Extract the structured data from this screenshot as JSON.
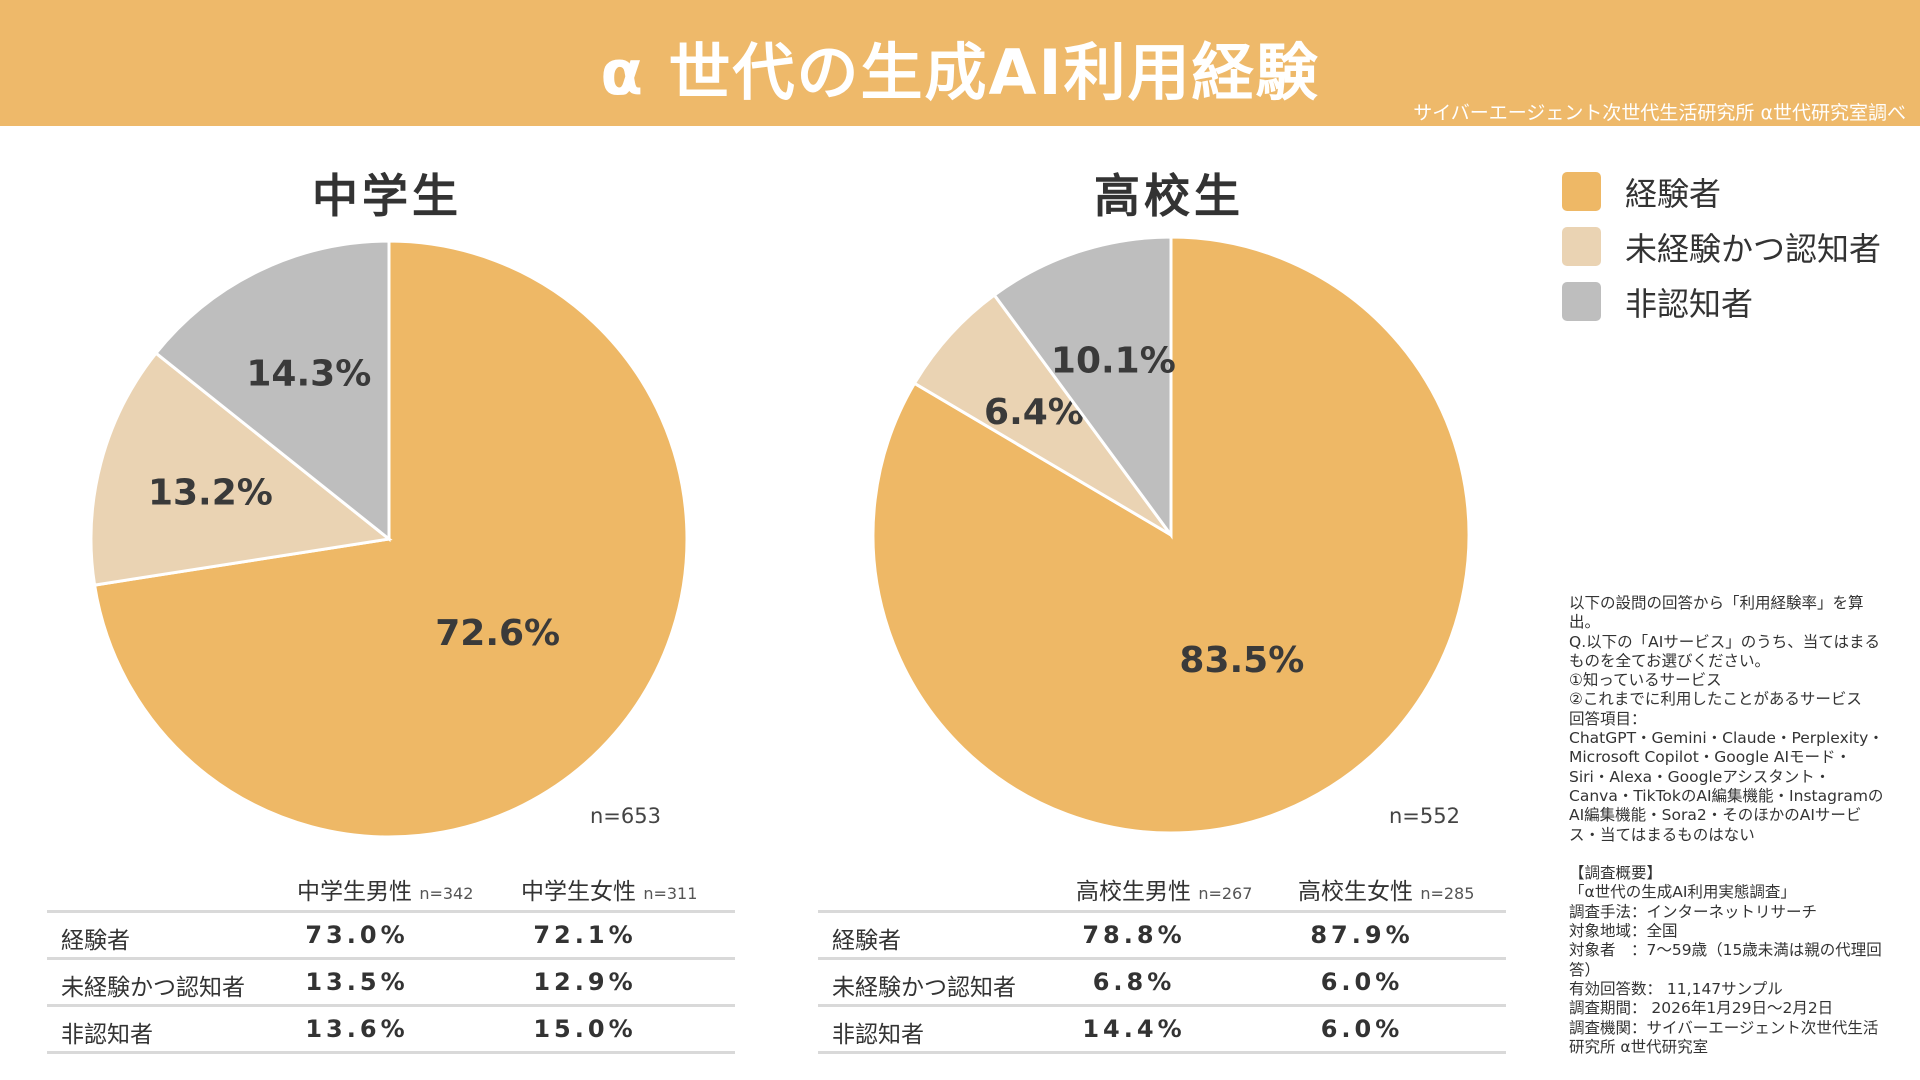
{
  "header": {
    "title": "α 世代の生成AI利用経験",
    "credit": "サイバーエージェント次世代生活研究所 α世代研究室調べ"
  },
  "colors": {
    "header": "#EEB96A",
    "experienced": "#EEB866",
    "aware": "#EAD3B3",
    "unaware": "#BEBEBE"
  },
  "legend": [
    "経験者",
    "未経験かつ認知者",
    "非認知者"
  ],
  "chart_data": [
    {
      "type": "pie",
      "title": "中学生",
      "n": "n=653",
      "labels": [
        "経験者",
        "未経験かつ認知者",
        "非認知者"
      ],
      "values": [
        72.6,
        13.2,
        14.3
      ],
      "value_labels": [
        "72.6%",
        "13.2%",
        "14.3%"
      ],
      "start": "top",
      "direction": "clockwise"
    },
    {
      "type": "pie",
      "title": "高校生",
      "n": "n=552",
      "labels": [
        "経験者",
        "未経験かつ認知者",
        "非認知者"
      ],
      "values": [
        83.5,
        6.4,
        10.1
      ],
      "value_labels": [
        "83.5%",
        "6.4%",
        "10.1%"
      ],
      "start": "top",
      "direction": "clockwise"
    }
  ],
  "tables": [
    {
      "columns": [
        {
          "label": "中学生男性",
          "n": "n=342"
        },
        {
          "label": "中学生女性",
          "n": "n=311"
        }
      ],
      "rows": [
        {
          "label": "経験者",
          "values": [
            "73.0%",
            "72.1%"
          ]
        },
        {
          "label": "未経験かつ認知者",
          "values": [
            "13.5%",
            "12.9%"
          ]
        },
        {
          "label": "非認知者",
          "values": [
            "13.6%",
            "15.0%"
          ]
        }
      ]
    },
    {
      "columns": [
        {
          "label": "高校生男性",
          "n": "n=267"
        },
        {
          "label": "高校生女性",
          "n": "n=285"
        }
      ],
      "rows": [
        {
          "label": "経験者",
          "values": [
            "78.8%",
            "87.9%"
          ]
        },
        {
          "label": "未経験かつ認知者",
          "values": [
            "6.8%",
            "6.0%"
          ]
        },
        {
          "label": "非認知者",
          "values": [
            "14.4%",
            "6.0%"
          ]
        }
      ]
    }
  ],
  "notes": "以下の設問の回答から「利用経験率」を算出。\nQ.以下の「AIサービス」のうち、当てはまるものを全てお選びください。\n①知っているサービス\n②これまでに利用したことがあるサービス\n回答項目：\nChatGPT・Gemini・Claude・Perplexity・Microsoft Copilot・Google AIモード・Siri・Alexa・Googleアシスタント・Canva・TikTokのAI編集機能・InstagramのAI編集機能・Sora2・そのほかのAIサービス・当てはまるものはない\n\n【調査概要】\n「α世代の生成AI利用実態調査」\n調査手法：インターネットリサーチ\n対象地域：全国\n対象者　：7〜59歳（15歳未満は親の代理回答）\n有効回答数： 11,147サンプル\n調査期間： 2026年1月29日〜2月2日\n調査機関：サイバーエージェント次世代生活研究所 α世代研究室"
}
